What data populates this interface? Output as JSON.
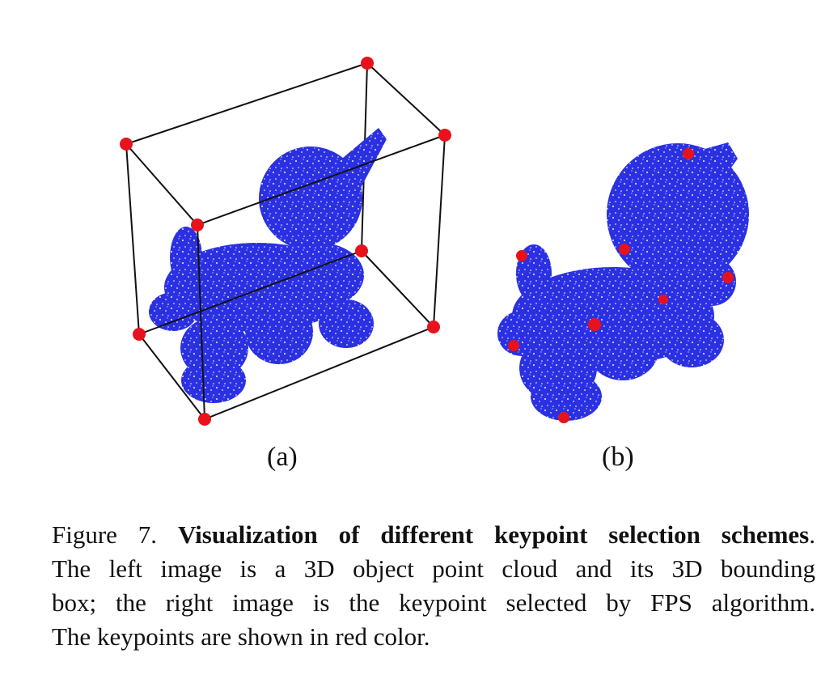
{
  "figure": {
    "subcaption_a": "(a)",
    "subcaption_b": "(b)",
    "colors": {
      "points": "#2a2fe0",
      "keypoints": "#e8121c",
      "box": "#111111"
    },
    "panel_a_keypoint_count": 8,
    "panel_b_keypoint_count": 8
  },
  "caption": {
    "label": "Figure 7.",
    "title": "Visualization of different keypoint selection schemes",
    "title_end": ".",
    "line2": "The left image is a 3D object point cloud and its 3D bounding",
    "line3": "box; the right image is the keypoint selected by FPS algorithm.",
    "line4": "The keypoints are shown in red color."
  }
}
